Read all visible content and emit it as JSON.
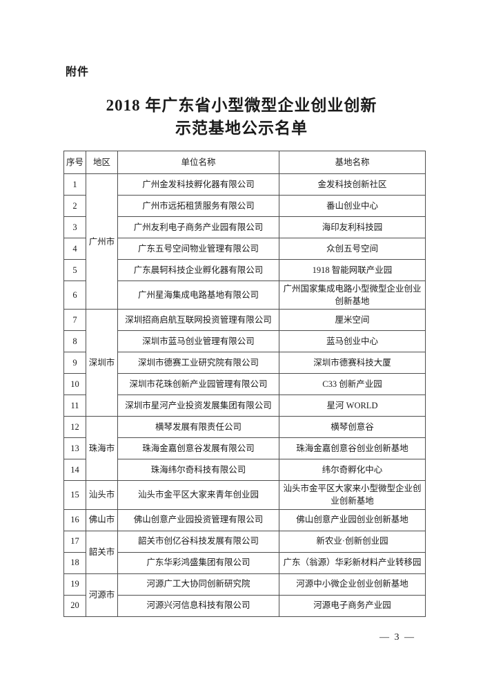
{
  "page": {
    "attachment_label": "附件",
    "title_line1": "2018 年广东省小型微型企业创业创新",
    "title_line2": "示范基地公示名单",
    "page_number": "— 3 —"
  },
  "table": {
    "headers": [
      "序号",
      "地区",
      "单位名称",
      "基地名称"
    ],
    "regions": [
      {
        "name": "广州市",
        "rowspan": 6
      },
      {
        "name": "深圳市",
        "rowspan": 5
      },
      {
        "name": "珠海市",
        "rowspan": 3
      },
      {
        "name": "汕头市",
        "rowspan": 1
      },
      {
        "name": "佛山市",
        "rowspan": 1
      },
      {
        "name": "韶关市",
        "rowspan": 2
      },
      {
        "name": "河源市",
        "rowspan": 2
      }
    ],
    "rows": [
      {
        "no": "1",
        "unit": "广州金发科技孵化器有限公司",
        "base": "金发科技创新社区"
      },
      {
        "no": "2",
        "unit": "广州市远拓租赁服务有限公司",
        "base": "番山创业中心"
      },
      {
        "no": "3",
        "unit": "广州友利电子商务产业园有限公司",
        "base": "海印友利科技园"
      },
      {
        "no": "4",
        "unit": "广东五号空间物业管理有限公司",
        "base": "众创五号空间"
      },
      {
        "no": "5",
        "unit": "广东晨轲科技企业孵化器有限公司",
        "base": "1918 智能网联产业园"
      },
      {
        "no": "6",
        "unit": "广州星海集成电路基地有限公司",
        "base": "广州国家集成电路小型微型企业创业创新基地"
      },
      {
        "no": "7",
        "unit": "深圳招商启航互联网投资管理有限公司",
        "base": "厘米空间"
      },
      {
        "no": "8",
        "unit": "深圳市蓝马创业管理有限公司",
        "base": "蓝马创业中心"
      },
      {
        "no": "9",
        "unit": "深圳市德赛工业研究院有限公司",
        "base": "深圳市德赛科技大厦"
      },
      {
        "no": "10",
        "unit": "深圳市花珠创新产业园管理有限公司",
        "base": "C33 创新产业园"
      },
      {
        "no": "11",
        "unit": "深圳市星河产业投资发展集团有限公司",
        "base": "星河 WORLD"
      },
      {
        "no": "12",
        "unit": "横琴发展有限责任公司",
        "base": "横琴创意谷"
      },
      {
        "no": "13",
        "unit": "珠海金嘉创意谷发展有限公司",
        "base": "珠海金嘉创意谷创业创新基地"
      },
      {
        "no": "14",
        "unit": "珠海纬尔奇科技有限公司",
        "base": "纬尔奇孵化中心"
      },
      {
        "no": "15",
        "unit": "汕头市金平区大家来青年创业园",
        "base": "汕头市金平区大家来小型微型企业创业创新基地"
      },
      {
        "no": "16",
        "unit": "佛山创意产业园投资管理有限公司",
        "base": "佛山创意产业园创业创新基地"
      },
      {
        "no": "17",
        "unit": "韶关市创亿谷科技发展有限公司",
        "base": "新农业·创新创业园"
      },
      {
        "no": "18",
        "unit": "广东华彩鸿盛集团有限公司",
        "base": "广东（翁源）华彩新材料产业转移园"
      },
      {
        "no": "19",
        "unit": "河源广工大协同创新研究院",
        "base": "河源中小微企业创业创新基地"
      },
      {
        "no": "20",
        "unit": "河源兴河信息科技有限公司",
        "base": "河源电子商务产业园"
      }
    ]
  }
}
